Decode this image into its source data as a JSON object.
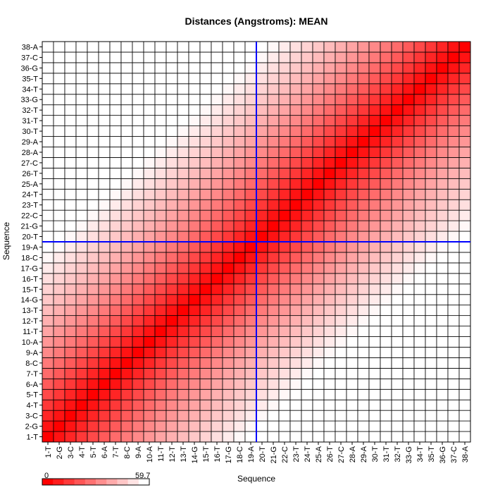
{
  "chart_data": {
    "type": "heatmap",
    "title": "Distances (Angstroms):  MEAN",
    "xlabel": "Sequence",
    "ylabel": "Sequence",
    "labels": [
      "1-T",
      "2-G",
      "3-C",
      "4-T",
      "5-T",
      "6-A",
      "7-T",
      "8-C",
      "9-A",
      "10-A",
      "11-T",
      "12-T",
      "13-T",
      "14-G",
      "15-T",
      "16-T",
      "17-G",
      "18-C",
      "19-A",
      "20-T",
      "21-G",
      "22-C",
      "23-T",
      "24-T",
      "25-A",
      "26-T",
      "27-C",
      "28-A",
      "29-A",
      "30-T",
      "31-T",
      "32-T",
      "33-G",
      "34-T",
      "35-T",
      "36-G",
      "37-C",
      "38-A"
    ],
    "scale": {
      "min": 0,
      "max": 59.7,
      "min_label": "0",
      "max_label": "59.7"
    },
    "value_model": "distance between nucleotides of a B-DNA double helix, approximately sqrt((2*9*sin(18deg*|i-j|))^2 + (3.38*|i-j|)^2), clipped at 59.7",
    "crosshair": {
      "row": "19-A",
      "col": "19-A",
      "color": "#0000ff"
    },
    "colors": {
      "low": "#ff0000",
      "high": "#ffffff",
      "grid": "#000000"
    }
  }
}
